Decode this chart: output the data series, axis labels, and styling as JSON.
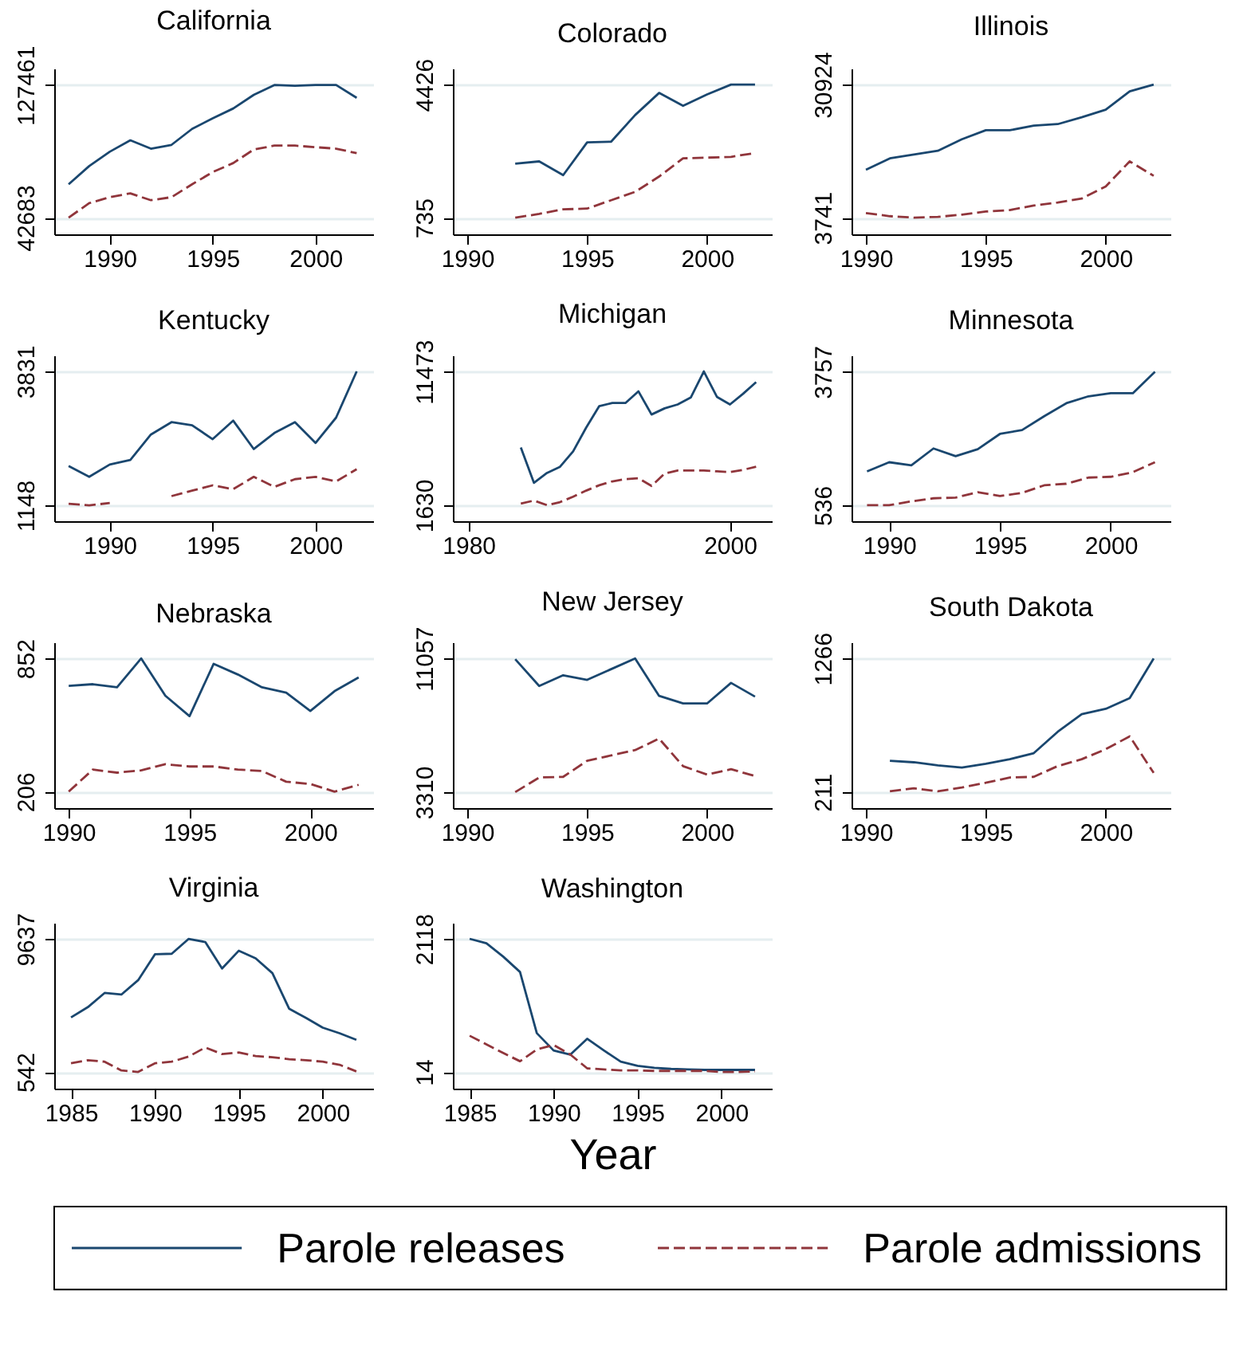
{
  "chart_data": [
    {
      "type": "line",
      "title": "California",
      "x": [
        1988,
        1989,
        1990,
        1991,
        1992,
        1993,
        1994,
        1995,
        1996,
        1997,
        1998,
        1999,
        2000,
        2001,
        2002
      ],
      "xlim": [
        1987.3,
        2002.8
      ],
      "xticks": [
        1990,
        1995,
        2000
      ],
      "ylim": [
        32000,
        138000
      ],
      "yticks": [
        42683,
        127461
      ],
      "grid": "y",
      "series": [
        {
          "color": "#1a476f",
          "line_style": "solid",
          "values": [
            63980,
            75650,
            84820,
            92100,
            86770,
            89200,
            99400,
            106180,
            112450,
            121190,
            127461,
            126950,
            127461,
            127461,
            119240
          ]
        },
        {
          "color": "#90353b",
          "line_style": "dashed",
          "values": [
            42683,
            51920,
            55740,
            58200,
            53800,
            55740,
            63980,
            71760,
            77550,
            86260,
            88720,
            88720,
            87700,
            86770,
            83880
          ]
        }
      ]
    },
    {
      "type": "line",
      "title": "Colorado",
      "x": [
        1992,
        1993,
        1994,
        1995,
        1996,
        1997,
        1998,
        1999,
        2000,
        2001,
        2002
      ],
      "xlim": [
        1989.4,
        2002.7
      ],
      "xticks": [
        1990,
        1995,
        2000
      ],
      "ylim": [
        275,
        4870
      ],
      "yticks": [
        735,
        4426
      ],
      "grid": "y",
      "series": [
        {
          "color": "#1a476f",
          "line_style": "solid",
          "values": [
            2234,
            2296,
            1916,
            2824,
            2843,
            3581,
            4194,
            3835,
            4153,
            4426,
            4426
          ]
        },
        {
          "color": "#90353b",
          "line_style": "dashed",
          "values": [
            735,
            841,
            967,
            988,
            1220,
            1451,
            1876,
            2381,
            2400,
            2422,
            2529
          ]
        }
      ]
    },
    {
      "type": "line",
      "title": "Illinois",
      "x": [
        1990,
        1991,
        1992,
        1993,
        1994,
        1995,
        1996,
        1997,
        1998,
        1999,
        2000,
        2001,
        2002
      ],
      "xlim": [
        1989.4,
        2002.7
      ],
      "xticks": [
        1990,
        1995,
        2000
      ],
      "ylim": [
        340,
        34200
      ],
      "yticks": [
        3741,
        30924
      ],
      "grid": "y",
      "series": [
        {
          "color": "#1a476f",
          "line_style": "solid",
          "values": [
            13530,
            15860,
            16630,
            17410,
            19750,
            21600,
            21600,
            22530,
            22850,
            24240,
            25790,
            29540,
            30924
          ]
        },
        {
          "color": "#90353b",
          "line_style": "dashed",
          "values": [
            4670,
            4040,
            3741,
            3900,
            4360,
            4990,
            5290,
            6220,
            6840,
            7630,
            10110,
            15240,
            12280
          ]
        }
      ]
    },
    {
      "type": "line",
      "title": "Kentucky",
      "x": [
        1988,
        1989,
        1990,
        1991,
        1992,
        1993,
        1994,
        1995,
        1996,
        1997,
        1998,
        1999,
        2000,
        2001,
        2002
      ],
      "xlim": [
        1987.3,
        2002.8
      ],
      "xticks": [
        1990,
        1995,
        2000
      ],
      "ylim": [
        830,
        4150
      ],
      "yticks": [
        1148,
        3831
      ],
      "grid": "y",
      "series": [
        {
          "color": "#1a476f",
          "line_style": "solid",
          "values": [
            1934,
            1719,
            1966,
            2058,
            2567,
            2814,
            2752,
            2473,
            2844,
            2275,
            2597,
            2814,
            2398,
            2905,
            3831
          ]
        },
        {
          "color": "#90353b",
          "line_style": "dashed",
          "values": [
            1178,
            1148,
            1194,
            null,
            null,
            1333,
            1441,
            1548,
            1472,
            1719,
            1518,
            1672,
            1719,
            1626,
            1872
          ]
        }
      ]
    },
    {
      "type": "line",
      "title": "Michigan",
      "x": [
        1984,
        1985,
        1986,
        1987,
        1988,
        1989,
        1990,
        1991,
        1992,
        1993,
        1994,
        1995,
        1996,
        1997,
        1998,
        1999,
        2000,
        2001,
        2002
      ],
      "xlim": [
        1978.8,
        2003.2
      ],
      "xticks": [
        1980,
        2000
      ],
      "ylim": [
        450,
        12650
      ],
      "yticks": [
        1630,
        11473
      ],
      "grid": "y",
      "series": [
        {
          "color": "#1a476f",
          "line_style": "solid",
          "values": [
            5873,
            3274,
            4002,
            4455,
            5587,
            7339,
            8924,
            9150,
            9150,
            10006,
            8303,
            8756,
            9042,
            9554,
            11473,
            9603,
            9042,
            9829,
            10686
          ]
        },
        {
          "color": "#90353b",
          "line_style": "dashed",
          "values": [
            1743,
            1970,
            1630,
            1856,
            2252,
            2703,
            3097,
            3382,
            3549,
            3609,
            3047,
            3953,
            4179,
            4179,
            4179,
            4120,
            4061,
            4230,
            4455
          ]
        }
      ]
    },
    {
      "type": "line",
      "title": "Minnesota",
      "x": [
        1989,
        1990,
        1991,
        1992,
        1993,
        1994,
        1995,
        1996,
        1997,
        1998,
        1999,
        2000,
        2001,
        2002
      ],
      "xlim": [
        1988.3,
        2002.7
      ],
      "xticks": [
        1990,
        1995,
        2000
      ],
      "ylim": [
        150,
        4150
      ],
      "yticks": [
        536,
        3757
      ],
      "grid": "y",
      "series": [
        {
          "color": "#1a476f",
          "line_style": "solid",
          "values": [
            1351,
            1573,
            1499,
            1905,
            1721,
            1889,
            2256,
            2350,
            2684,
            2997,
            3164,
            3238,
            3238,
            3757
          ]
        },
        {
          "color": "#90353b",
          "line_style": "dashed",
          "values": [
            536,
            536,
            629,
            703,
            720,
            851,
            758,
            832,
            1016,
            1054,
            1203,
            1222,
            1332,
            1573
          ]
        }
      ]
    },
    {
      "type": "line",
      "title": "Nebraska",
      "x": [
        1990,
        1991,
        1992,
        1993,
        1994,
        1995,
        1996,
        1997,
        1998,
        1999,
        2000,
        2001,
        2002
      ],
      "xlim": [
        1989.4,
        2002.6
      ],
      "xticks": [
        1990,
        1995,
        2000
      ],
      "ylim": [
        126,
        930
      ],
      "yticks": [
        206,
        852
      ],
      "grid": "y",
      "series": [
        {
          "color": "#1a476f",
          "line_style": "solid",
          "values": [
            719,
            727,
            712,
            852,
            671,
            572,
            826,
            774,
            712,
            686,
            597,
            693,
            760
          ]
        },
        {
          "color": "#90353b",
          "line_style": "dashed",
          "values": [
            206,
            313,
            298,
            309,
            339,
            328,
            328,
            313,
            306,
            254,
            243,
            206,
            239
          ]
        }
      ]
    },
    {
      "type": "line",
      "title": "New Jersey",
      "x": [
        1992,
        1993,
        1994,
        1995,
        1996,
        1997,
        1998,
        1999,
        2000,
        2001,
        2002
      ],
      "xlim": [
        1989.4,
        2002.7
      ],
      "xticks": [
        1990,
        1995,
        2000
      ],
      "ylim": [
        2380,
        11990
      ],
      "yticks": [
        3310,
        11057
      ],
      "grid": "y",
      "series": [
        {
          "color": "#1a476f",
          "line_style": "solid",
          "values": [
            11011,
            9462,
            10083,
            9817,
            10437,
            11057,
            8888,
            8446,
            8446,
            9639,
            8841
          ]
        },
        {
          "color": "#90353b",
          "line_style": "dashed",
          "values": [
            3310,
            4154,
            4193,
            5123,
            5433,
            5743,
            6409,
            4813,
            4325,
            4635,
            4240
          ]
        }
      ]
    },
    {
      "type": "line",
      "title": "South Dakota",
      "x": [
        1991,
        1992,
        1993,
        1994,
        1995,
        1996,
        1997,
        1998,
        1999,
        2000,
        2001,
        2002
      ],
      "xlim": [
        1989.4,
        2002.7
      ],
      "xticks": [
        1990,
        1995,
        2000
      ],
      "ylim": [
        84,
        1393
      ],
      "yticks": [
        211,
        1266
      ],
      "grid": "y",
      "series": [
        {
          "color": "#1a476f",
          "line_style": "solid",
          "values": [
            458,
            446,
            422,
            404,
            434,
            470,
            518,
            687,
            826,
            868,
            953,
            1266
          ]
        },
        {
          "color": "#90353b",
          "line_style": "dashed",
          "values": [
            217,
            241,
            217,
            247,
            284,
            326,
            331,
            416,
            470,
            549,
            651,
            362
          ]
        }
      ]
    },
    {
      "type": "line",
      "title": "Virginia",
      "x": [
        1985,
        1986,
        1987,
        1988,
        1989,
        1990,
        1991,
        1992,
        1993,
        1994,
        1995,
        1996,
        1997,
        1998,
        1999,
        2000,
        2001,
        2002
      ],
      "xlim": [
        1984.0,
        2003.0
      ],
      "xticks": [
        1985,
        1990,
        1995,
        2000
      ],
      "ylim": [
        -600,
        10740
      ],
      "yticks": [
        542,
        9637
      ],
      "grid": "y",
      "series": [
        {
          "color": "#1a476f",
          "line_style": "solid",
          "values": [
            4271,
            4971,
            5945,
            5835,
            6818,
            8591,
            8627,
            9637,
            9428,
            7618,
            8837,
            8312,
            7300,
            4862,
            4235,
            3571,
            3189,
            2736
          ]
        },
        {
          "color": "#90353b",
          "line_style": "dashed",
          "values": [
            1134,
            1343,
            1242,
            642,
            542,
            1134,
            1242,
            1588,
            2216,
            1760,
            1870,
            1624,
            1552,
            1415,
            1343,
            1242,
            1033,
            580
          ]
        }
      ]
    },
    {
      "type": "line",
      "title": "Washington",
      "xlabel": "Year",
      "legend": "bottom",
      "x": [
        1985,
        1986,
        1987,
        1988,
        1989,
        1990,
        1991,
        1992,
        1993,
        1994,
        1995,
        1996,
        1997,
        1998,
        1999,
        2000,
        2001,
        2002
      ],
      "xlim": [
        1984.0,
        2003.0
      ],
      "xticks": [
        1985,
        1990,
        1995,
        2000
      ],
      "ylim": [
        -250,
        2370
      ],
      "yticks": [
        14,
        2118
      ],
      "grid": "y",
      "series": [
        {
          "name": "Parole releases",
          "color": "#1a476f",
          "line_style": "solid",
          "values": [
            2118,
            2046,
            1836,
            1594,
            627,
            353,
            288,
            538,
            353,
            176,
            111,
            79,
            62,
            54,
            46,
            46,
            46,
            46
          ]
        },
        {
          "name": "Parole admissions",
          "color": "#90353b",
          "line_style": "dashed",
          "values": [
            586,
            449,
            313,
            183,
            369,
            441,
            288,
            71,
            54,
            38,
            38,
            30,
            30,
            30,
            30,
            14,
            14,
            22
          ]
        }
      ]
    }
  ]
}
